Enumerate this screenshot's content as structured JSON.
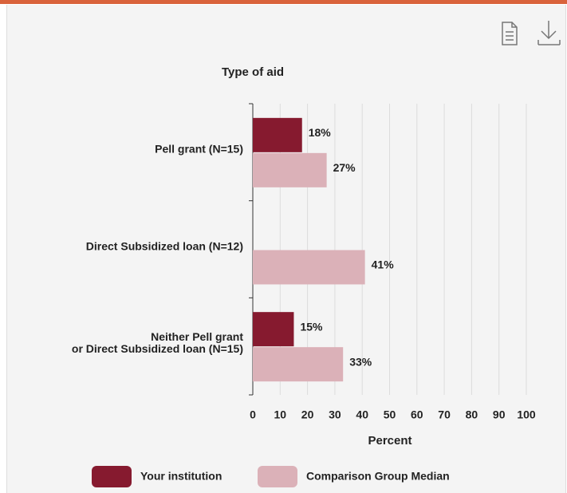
{
  "chart_data": {
    "type": "bar",
    "orientation": "horizontal",
    "title": "Type of aid",
    "x_label": "Percent",
    "categories": [
      "Pell grant  (N=15)",
      "Direct Subsidized loan (N=12)",
      "Neither Pell grant\nor Direct Subsidized loan (N=15)"
    ],
    "series": [
      {
        "name": "Your institution",
        "color": "#861a2f",
        "values": [
          18,
          null,
          15
        ],
        "value_labels": [
          "18%",
          null,
          "15%"
        ]
      },
      {
        "name": "Comparison Group Median",
        "color": "#dbb1b8",
        "values": [
          27,
          41,
          33
        ],
        "value_labels": [
          "27%",
          "41%",
          "33%"
        ]
      }
    ],
    "xlim": [
      0,
      100
    ],
    "xticks": [
      0,
      10,
      20,
      30,
      40,
      50,
      60,
      70,
      80,
      90,
      100
    ],
    "grid": true
  }
}
